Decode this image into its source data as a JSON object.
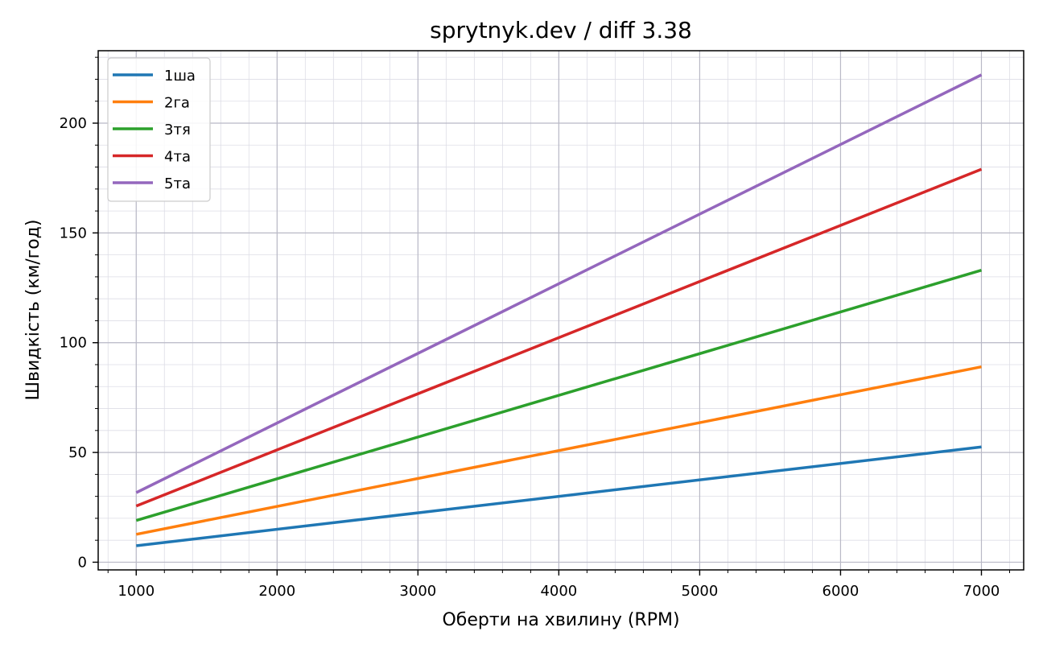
{
  "chart_data": {
    "type": "line",
    "title": "sprytnyk.dev / diff 3.38",
    "xlabel": "Оберти на хвилину (RPM)",
    "ylabel": "Швидкість (км/год)",
    "xlim": [
      730,
      7300
    ],
    "ylim": [
      -3.5,
      233
    ],
    "xticks": [
      1000,
      2000,
      3000,
      4000,
      5000,
      6000,
      7000
    ],
    "yticks": [
      0,
      50,
      100,
      150,
      200
    ],
    "x_minor_step": 200,
    "y_minor_step": 10,
    "grid": true,
    "minor_grid": true,
    "legend_position": "upper-left",
    "series": [
      {
        "name": "1ша",
        "color": "#1f77b4",
        "x": [
          1000,
          7000
        ],
        "y": [
          7.5,
          52.5
        ]
      },
      {
        "name": "2га",
        "color": "#ff7f0e",
        "x": [
          1000,
          7000
        ],
        "y": [
          12.7,
          89.0
        ]
      },
      {
        "name": "3тя",
        "color": "#2ca02c",
        "x": [
          1000,
          7000
        ],
        "y": [
          19.0,
          133.0
        ]
      },
      {
        "name": "4та",
        "color": "#d62728",
        "x": [
          1000,
          7000
        ],
        "y": [
          25.6,
          179.0
        ]
      },
      {
        "name": "5та",
        "color": "#9467bd",
        "x": [
          1000,
          7000
        ],
        "y": [
          31.7,
          222.0
        ]
      }
    ]
  }
}
